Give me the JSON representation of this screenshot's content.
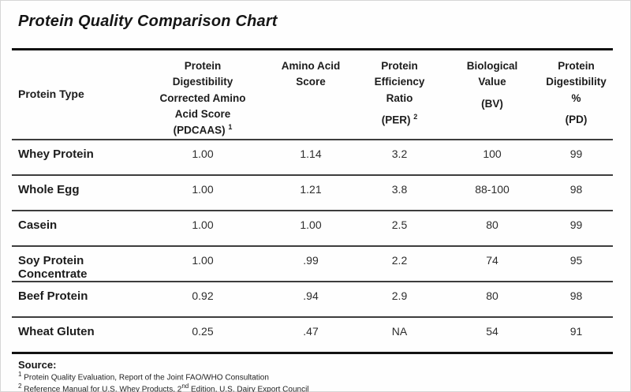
{
  "title": "Protein Quality Comparison Chart",
  "colors": {
    "text": "#1c1c1c",
    "value_text": "#2d2d2d",
    "rule_heavy": "#121212",
    "rule_light": "#3d3d3d",
    "background": "#fefefe"
  },
  "table": {
    "columns": [
      {
        "id": "protein",
        "label": "Protein Type",
        "sub": "",
        "sup": ""
      },
      {
        "id": "pdcaas",
        "label": "Protein Digestibility Corrected Amino Acid Score",
        "sub": "(PDCAAS)",
        "sup": "1"
      },
      {
        "id": "amino",
        "label": "Amino Acid Score",
        "sub": "",
        "sup": ""
      },
      {
        "id": "per",
        "label": "Protein Efficiency Ratio",
        "sub": "(PER)",
        "sup": "2"
      },
      {
        "id": "bv",
        "label": "Biological Value",
        "sub": "(BV)",
        "sup": ""
      },
      {
        "id": "pd",
        "label": "Protein Digestibility %",
        "sub": "(PD)",
        "sup": ""
      }
    ],
    "rows": [
      {
        "protein": "Whey Protein",
        "pdcaas": "1.00",
        "amino": "1.14",
        "per": "3.2",
        "bv": "100",
        "pd": "99"
      },
      {
        "protein": "Whole Egg",
        "pdcaas": "1.00",
        "amino": "1.21",
        "per": "3.8",
        "bv": "88-100",
        "pd": "98"
      },
      {
        "protein": "Casein",
        "pdcaas": "1.00",
        "amino": "1.00",
        "per": "2.5",
        "bv": "80",
        "pd": "99"
      },
      {
        "protein": "Soy Protein Concentrate",
        "pdcaas": "1.00",
        "amino": ".99",
        "per": "2.2",
        "bv": "74",
        "pd": "95"
      },
      {
        "protein": "Beef Protein",
        "pdcaas": "0.92",
        "amino": ".94",
        "per": "2.9",
        "bv": "80",
        "pd": "98"
      },
      {
        "protein": "Wheat Gluten",
        "pdcaas": "0.25",
        "amino": ".47",
        "per": "NA",
        "bv": "54",
        "pd": "91"
      }
    ]
  },
  "source": {
    "heading": "Source:",
    "notes": [
      {
        "marker": "1",
        "text": "Protein Quality Evaluation, Report of the Joint FAO/WHO Consultation"
      },
      {
        "marker": "2",
        "text_before": "Reference Manual for U.S. Whey Products, 2",
        "ordinal_sup": "nd",
        "text_after": " Edition, U.S. Dairy Export Council"
      }
    ]
  },
  "chart_data": {
    "type": "table",
    "title": "Protein Quality Comparison Chart",
    "columns": [
      "Protein Type",
      "Protein Digestibility Corrected Amino Acid Score (PDCAAS)",
      "Amino Acid Score",
      "Protein Efficiency Ratio (PER)",
      "Biological Value (BV)",
      "Protein Digestibility % (PD)"
    ],
    "rows": [
      [
        "Whey Protein",
        "1.00",
        "1.14",
        "3.2",
        "100",
        "99"
      ],
      [
        "Whole Egg",
        "1.00",
        "1.21",
        "3.8",
        "88-100",
        "98"
      ],
      [
        "Casein",
        "1.00",
        "1.00",
        "2.5",
        "80",
        "99"
      ],
      [
        "Soy Protein Concentrate",
        "1.00",
        ".99",
        "2.2",
        "74",
        "95"
      ],
      [
        "Beef Protein",
        "0.92",
        ".94",
        "2.9",
        "80",
        "98"
      ],
      [
        "Wheat Gluten",
        "0.25",
        ".47",
        "NA",
        "54",
        "91"
      ]
    ]
  }
}
